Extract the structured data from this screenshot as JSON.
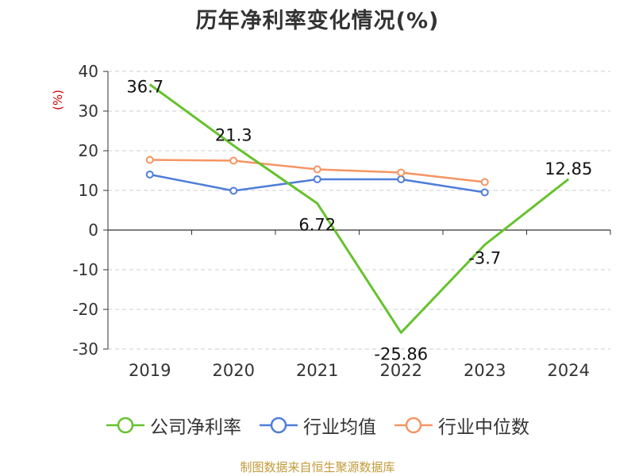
{
  "chart_data": {
    "type": "line",
    "title": "历年净利率变化情况(%)",
    "ylabel": "(%)",
    "xlabel": "",
    "categories": [
      "2019",
      "2020",
      "2021",
      "2022",
      "2023",
      "2024"
    ],
    "ylim": [
      -30,
      40
    ],
    "yticks": [
      40,
      30,
      20,
      10,
      0,
      -10,
      -20,
      -30
    ],
    "grid": true,
    "legend_position": "bottom",
    "series": [
      {
        "name": "公司净利率",
        "color": "#66c22e",
        "values": [
          36.7,
          21.3,
          6.72,
          -25.86,
          -3.7,
          12.85
        ],
        "labels": [
          "36.7",
          "21.3",
          "6.72",
          "-25.86",
          "-3.7",
          "12.85"
        ]
      },
      {
        "name": "行业均值",
        "color": "#4e7ed8",
        "values": [
          14.0,
          9.9,
          12.8,
          12.8,
          9.5,
          null
        ]
      },
      {
        "name": "行业中位数",
        "color": "#f59562",
        "values": [
          17.7,
          17.5,
          15.3,
          14.5,
          12.1,
          null
        ]
      }
    ]
  },
  "footer": {
    "source": "制图数据来自恒生聚源数据库"
  }
}
